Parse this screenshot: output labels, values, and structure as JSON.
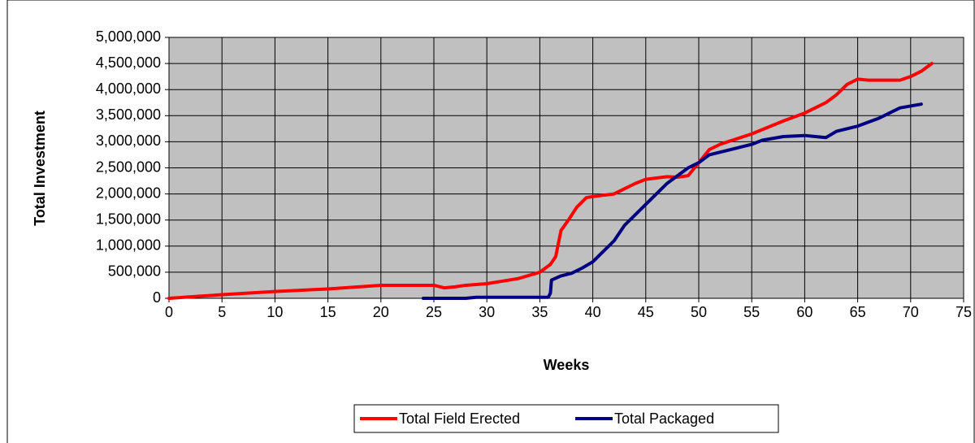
{
  "chart_data": {
    "type": "line",
    "ylabel": "Total Investment",
    "xlabel": "Weeks",
    "xlim": [
      0,
      75
    ],
    "xticks": [
      0,
      5,
      10,
      15,
      20,
      25,
      30,
      35,
      40,
      45,
      50,
      55,
      60,
      65,
      70,
      75
    ],
    "ylim": [
      0,
      5000000
    ],
    "yticks": [
      0,
      {
        "value": 500000,
        "label": "500,000"
      },
      {
        "value": 1000000,
        "label": "1,000,000"
      },
      {
        "value": 1500000,
        "label": "1,500,000"
      },
      {
        "value": 2000000,
        "label": "2,000,000"
      },
      {
        "value": 2500000,
        "label": "2,500,000"
      },
      {
        "value": 3000000,
        "label": "3,000,000"
      },
      {
        "value": 3500000,
        "label": "3,500,000"
      },
      {
        "value": 4000000,
        "label": "4,000,000"
      },
      {
        "value": 4500000,
        "label": "4,500,000"
      },
      {
        "value": 5000000,
        "label": "5,000,000"
      }
    ],
    "grid": true,
    "background": "#c0c0c0",
    "legend": "bottom",
    "series": [
      {
        "name": "Total Field Erected",
        "color": "#ff0000",
        "x": [
          0,
          5,
          10,
          15,
          20,
          25,
          26,
          27,
          28,
          30,
          33,
          35,
          36,
          36.5,
          37,
          37.7,
          38.5,
          39.4,
          40,
          42,
          43,
          44,
          45,
          47,
          48,
          49,
          50,
          51,
          52,
          55,
          58,
          60,
          62,
          63,
          64,
          65,
          66,
          69,
          70,
          71,
          72
        ],
        "values": [
          0,
          70000,
          130000,
          180000,
          250000,
          250000,
          200000,
          220000,
          250000,
          280000,
          380000,
          500000,
          650000,
          800000,
          1300000,
          1500000,
          1750000,
          1930000,
          1950000,
          2000000,
          2100000,
          2200000,
          2280000,
          2330000,
          2320000,
          2350000,
          2600000,
          2850000,
          2950000,
          3150000,
          3400000,
          3550000,
          3750000,
          3900000,
          4100000,
          4200000,
          4180000,
          4180000,
          4250000,
          4350000,
          4500000
        ]
      },
      {
        "name": "Total Packaged",
        "color": "#000080",
        "x": [
          24,
          28,
          29,
          35,
          35.8,
          36,
          36.1,
          37,
          38,
          39,
          40,
          41,
          42,
          43,
          44,
          45,
          46,
          47,
          48,
          49,
          50,
          51,
          53,
          55,
          56,
          58,
          60,
          61,
          62,
          63,
          65,
          67,
          68,
          69,
          71
        ],
        "values": [
          0,
          0,
          20000,
          20000,
          20000,
          100000,
          350000,
          430000,
          480000,
          580000,
          700000,
          900000,
          1100000,
          1400000,
          1600000,
          1800000,
          2000000,
          2200000,
          2350000,
          2500000,
          2600000,
          2750000,
          2850000,
          2950000,
          3030000,
          3100000,
          3120000,
          3100000,
          3080000,
          3200000,
          3300000,
          3450000,
          3550000,
          3650000,
          3720000
        ]
      }
    ]
  }
}
